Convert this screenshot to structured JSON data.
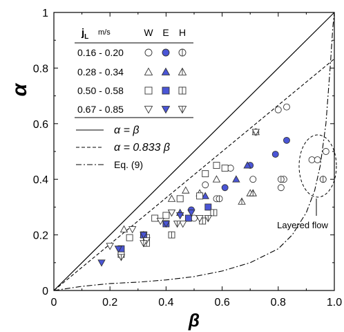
{
  "chart_data": {
    "type": "scatter",
    "xlabel": "β",
    "ylabel": "α",
    "xlim": [
      0,
      1
    ],
    "ylim": [
      0,
      1
    ],
    "x_ticks": [
      "0",
      "0.2",
      "0.4",
      "0.6",
      "0.8",
      "1.0"
    ],
    "y_ticks": [
      "0",
      "0.2",
      "0.4",
      "0.6",
      "0.8",
      "1"
    ],
    "x_tick_values": [
      0,
      0.2,
      0.4,
      0.6,
      0.8,
      1.0
    ],
    "y_tick_values": [
      0,
      0.2,
      0.4,
      0.6,
      0.8,
      1.0
    ],
    "grid": false,
    "legend": {
      "placement": "top-left",
      "header": {
        "jl": "j",
        "jl_sub": "L",
        "unit": "m/s",
        "cols": [
          "W",
          "E",
          "H"
        ]
      },
      "rows": [
        {
          "label": "0.16 - 0.20",
          "shape": "circle"
        },
        {
          "label": "0.28 - 0.34",
          "shape": "triangle-up"
        },
        {
          "label": "0.50 - 0.58",
          "shape": "square"
        },
        {
          "label": "0.67 - 0.85",
          "shape": "triangle-down"
        }
      ],
      "lines": [
        {
          "label": "α = β",
          "style": "solid"
        },
        {
          "label": "α = 0.833 β",
          "style": "dashed"
        },
        {
          "label": "Eq. (9)",
          "style": "dashdot"
        }
      ]
    },
    "annotation": "Layered flow",
    "fill_color": "#4a55d6",
    "series": [
      {
        "shape": "circle",
        "variant": "W",
        "points": [
          [
            0.5,
            0.26
          ],
          [
            0.54,
            0.38
          ],
          [
            0.58,
            0.33
          ],
          [
            0.63,
            0.44
          ],
          [
            0.71,
            0.4
          ],
          [
            0.72,
            0.57
          ],
          [
            0.8,
            0.65
          ],
          [
            0.81,
            0.37
          ],
          [
            0.82,
            0.4
          ],
          [
            0.83,
            0.66
          ],
          [
            0.92,
            0.47
          ],
          [
            0.94,
            0.47
          ],
          [
            0.96,
            0.4
          ],
          [
            0.97,
            0.5
          ]
        ]
      },
      {
        "shape": "circle",
        "variant": "E",
        "points": [
          [
            0.49,
            0.29
          ],
          [
            0.61,
            0.37
          ],
          [
            0.7,
            0.45
          ],
          [
            0.79,
            0.49
          ],
          [
            0.83,
            0.54
          ]
        ]
      },
      {
        "shape": "circle",
        "variant": "H",
        "points": [
          [
            0.59,
            0.33
          ],
          [
            0.81,
            0.4
          ],
          [
            0.96,
            0.4
          ]
        ]
      },
      {
        "shape": "triangle-up",
        "variant": "W",
        "points": [
          [
            0.25,
            0.22
          ],
          [
            0.42,
            0.33
          ],
          [
            0.47,
            0.36
          ],
          [
            0.52,
            0.35
          ],
          [
            0.58,
            0.4
          ],
          [
            0.7,
            0.35
          ],
          [
            0.72,
            0.57
          ]
        ]
      },
      {
        "shape": "triangle-up",
        "variant": "E",
        "points": [
          [
            0.32,
            0.2
          ],
          [
            0.45,
            0.28
          ],
          [
            0.54,
            0.34
          ],
          [
            0.65,
            0.4
          ],
          [
            0.69,
            0.45
          ]
        ]
      },
      {
        "shape": "triangle-up",
        "variant": "H",
        "points": [
          [
            0.67,
            0.32
          ],
          [
            0.71,
            0.35
          ]
        ]
      },
      {
        "shape": "square",
        "variant": "W",
        "points": [
          [
            0.24,
            0.13
          ],
          [
            0.27,
            0.19
          ],
          [
            0.33,
            0.19
          ],
          [
            0.36,
            0.26
          ],
          [
            0.4,
            0.27
          ],
          [
            0.45,
            0.33
          ],
          [
            0.52,
            0.34
          ],
          [
            0.54,
            0.42
          ],
          [
            0.58,
            0.45
          ],
          [
            0.61,
            0.44
          ]
        ]
      },
      {
        "shape": "square",
        "variant": "E",
        "points": [
          [
            0.24,
            0.15
          ],
          [
            0.32,
            0.2
          ],
          [
            0.4,
            0.24
          ],
          [
            0.48,
            0.26
          ],
          [
            0.55,
            0.3
          ]
        ]
      },
      {
        "shape": "square",
        "variant": "H",
        "points": [
          [
            0.33,
            0.17
          ],
          [
            0.42,
            0.2
          ],
          [
            0.53,
            0.25
          ],
          [
            0.57,
            0.28
          ]
        ]
      },
      {
        "shape": "triangle-down",
        "variant": "W",
        "points": [
          [
            0.2,
            0.16
          ],
          [
            0.28,
            0.22
          ],
          [
            0.33,
            0.18
          ],
          [
            0.38,
            0.25
          ],
          [
            0.42,
            0.28
          ],
          [
            0.46,
            0.24
          ],
          [
            0.52,
            0.26
          ],
          [
            0.72,
            0.57
          ]
        ]
      },
      {
        "shape": "triangle-down",
        "variant": "E",
        "points": [
          [
            0.17,
            0.1
          ],
          [
            0.23,
            0.15
          ],
          [
            0.32,
            0.2
          ],
          [
            0.4,
            0.24
          ],
          [
            0.45,
            0.27
          ],
          [
            0.49,
            0.28
          ]
        ]
      },
      {
        "shape": "triangle-down",
        "variant": "H",
        "points": [
          [
            0.24,
            0.12
          ],
          [
            0.32,
            0.17
          ],
          [
            0.44,
            0.24
          ],
          [
            0.55,
            0.26
          ]
        ]
      }
    ]
  }
}
